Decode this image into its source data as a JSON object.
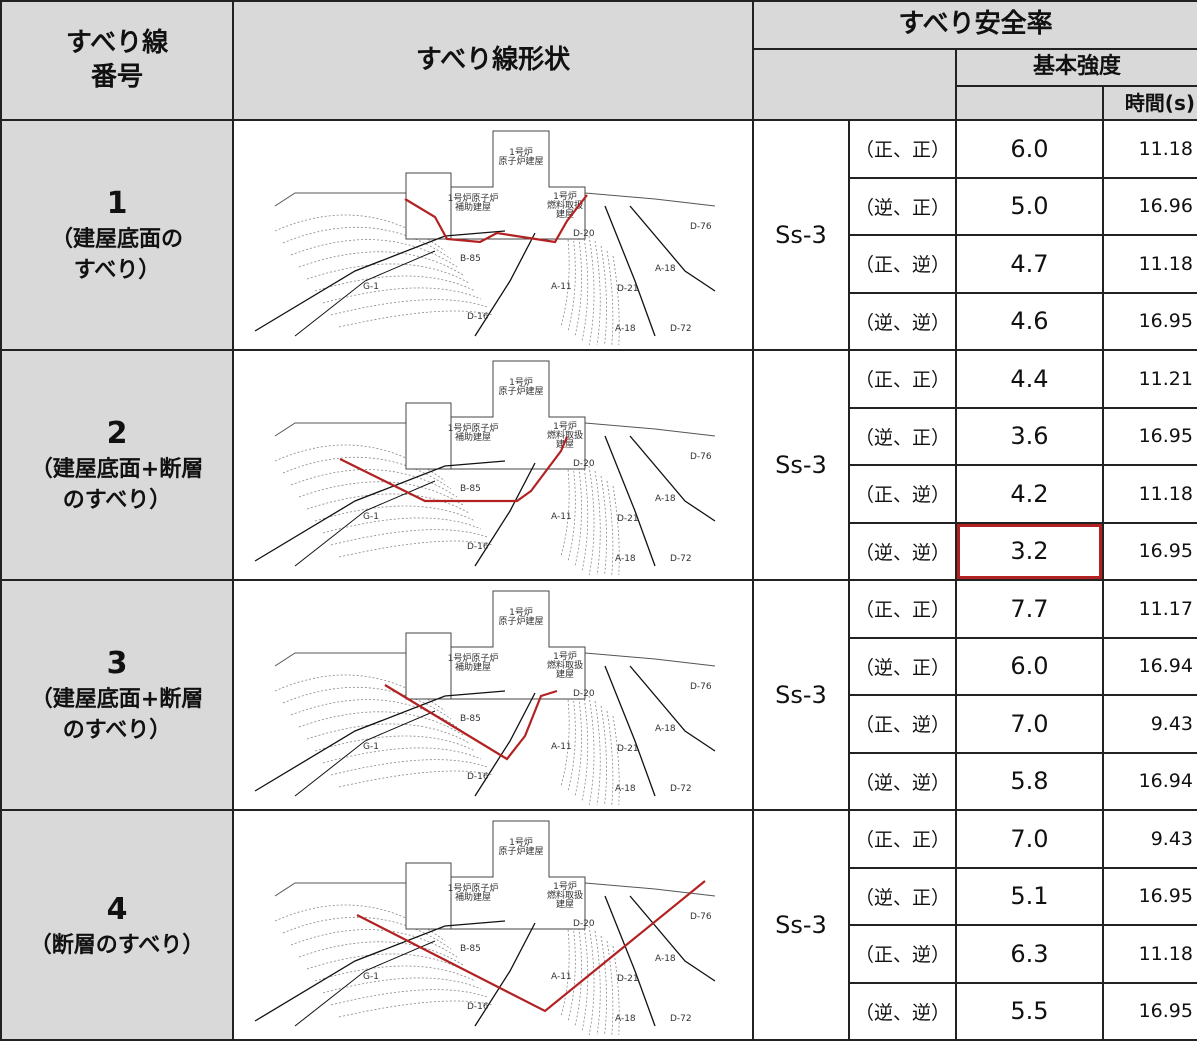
{
  "header": {
    "line_number": "すべり線\n番号",
    "line_shape": "すべり線形状",
    "safety_factor": "すべり安全率",
    "basic_strength": "基本強度",
    "time": "時間(s)"
  },
  "diagram": {
    "labels": {
      "reactor_building": "1号炉\n原子炉建屋",
      "auxiliary_building": "1号炉原子炉\n補助建屋",
      "fuel_building": "1号炉\n燃料取扱\n建屋",
      "faults": [
        "B-85",
        "G-1",
        "D-16",
        "D-20",
        "A-11",
        "D-21",
        "A-18",
        "D-72",
        "D-76",
        "A-18"
      ]
    }
  },
  "groups": [
    {
      "number": "1",
      "description": "（建屋底面の\nすべり）",
      "wave": "Ss-3",
      "cases": [
        {
          "case": "（正、正）",
          "factor": "6.0",
          "time": "11.18"
        },
        {
          "case": "（逆、正）",
          "factor": "5.0",
          "time": "16.96"
        },
        {
          "case": "（正、逆）",
          "factor": "4.7",
          "time": "11.18"
        },
        {
          "case": "（逆、逆）",
          "factor": "4.6",
          "time": "16.95"
        }
      ]
    },
    {
      "number": "2",
      "description": "（建屋底面+断層\nのすべり）",
      "wave": "Ss-3",
      "cases": [
        {
          "case": "（正、正）",
          "factor": "4.4",
          "time": "11.21"
        },
        {
          "case": "（逆、正）",
          "factor": "3.6",
          "time": "16.95"
        },
        {
          "case": "（正、逆）",
          "factor": "4.2",
          "time": "11.18"
        },
        {
          "case": "（逆、逆）",
          "factor": "3.2",
          "time": "16.95"
        }
      ]
    },
    {
      "number": "3",
      "description": "（建屋底面+断層\nのすべり）",
      "wave": "Ss-3",
      "cases": [
        {
          "case": "（正、正）",
          "factor": "7.7",
          "time": "11.17"
        },
        {
          "case": "（逆、正）",
          "factor": "6.0",
          "time": "16.94"
        },
        {
          "case": "（正、逆）",
          "factor": "7.0",
          "time": "9.43"
        },
        {
          "case": "（逆、逆）",
          "factor": "5.8",
          "time": "16.94"
        }
      ]
    },
    {
      "number": "4",
      "description": "（断層のすべり）",
      "wave": "Ss-3",
      "cases": [
        {
          "case": "（正、正）",
          "factor": "7.0",
          "time": "9.43"
        },
        {
          "case": "（逆、正）",
          "factor": "5.1",
          "time": "16.95"
        },
        {
          "case": "（正、逆）",
          "factor": "6.3",
          "time": "11.18"
        },
        {
          "case": "（逆、逆）",
          "factor": "5.5",
          "time": "16.95"
        }
      ]
    }
  ]
}
